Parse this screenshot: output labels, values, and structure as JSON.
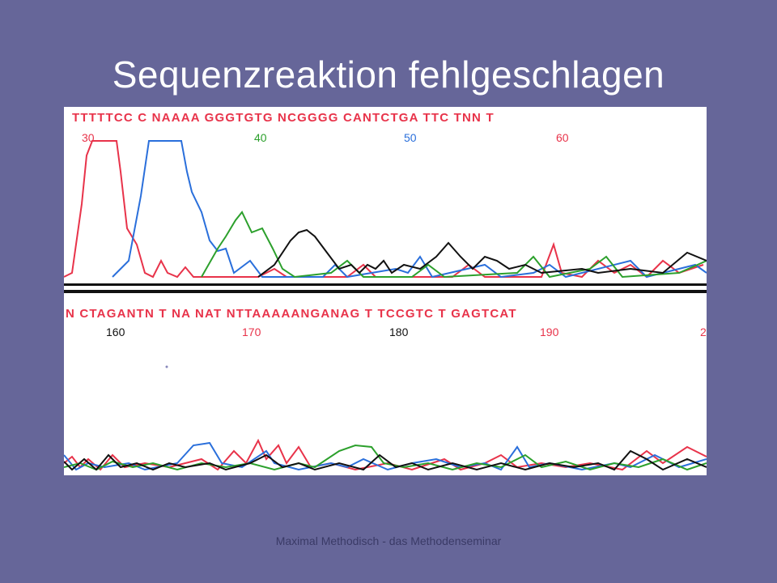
{
  "slide": {
    "title": "Sequenzreaktion fehlgeschlagen",
    "footer": "Maximal Methodisch - das Methodenseminar"
  },
  "chromatogram": {
    "top_sequence": "TTTTTCC C NAAAA GGGTGTG NCGGGG CANTCTGA TTC TNN T",
    "top_positions": [
      "30",
      "40",
      "50",
      "60"
    ],
    "bottom_sequence": "N CTAGANTN T NA NAT NTTAAAAANGANAG T TCCGTC T GAGTCAT",
    "bottom_positions": [
      "160",
      "170",
      "180",
      "190",
      "2"
    ],
    "colors": {
      "A": "#2ca02c",
      "C": "#2a6fdb",
      "G": "#111111",
      "T": "#e8334a",
      "N": "#e8334a",
      "background": "#666699",
      "panel": "#ffffff"
    }
  }
}
